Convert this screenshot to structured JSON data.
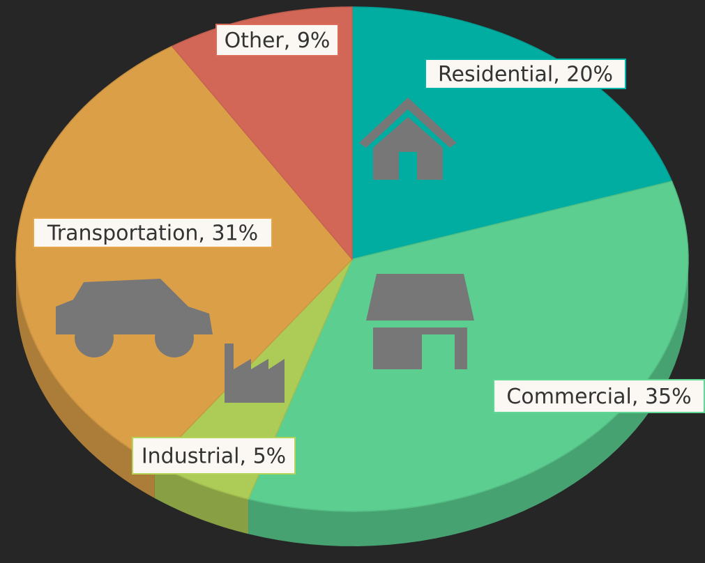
{
  "chart_data": {
    "type": "pie",
    "categories": [
      "Residential",
      "Commercial",
      "Industrial",
      "Transportation",
      "Other"
    ],
    "values": [
      20,
      35,
      5,
      31,
      9
    ],
    "value_labels": [
      "Residential, 20%",
      "Commercial, 35%",
      "Industrial, 5%",
      "Transportation, 31%",
      "Other, 9%"
    ],
    "colors": [
      "#00b5a8",
      "#5fd896",
      "#b5d45a",
      "#e5a64a",
      "#dd6b5a"
    ]
  }
}
